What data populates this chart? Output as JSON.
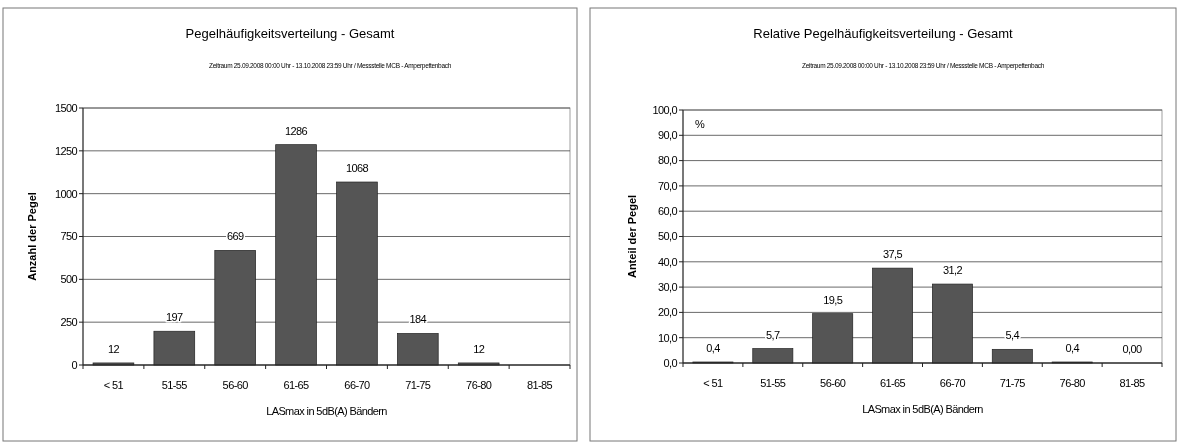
{
  "chart_data": [
    {
      "type": "bar",
      "title": "Pegelhäufigkeitsverteilung - Gesamt",
      "subtitle": "Zeitraum 25.09.2008 00:00 Uhr - 13.10.2008 23:59 Uhr / Messstelle MCB - Amperpettenbach",
      "xlabel": "LASmax in 5dB(A) Bändern",
      "ylabel": "Anzahl der Pegel",
      "categories": [
        "< 51",
        "51-55",
        "56-60",
        "61-65",
        "66-70",
        "71-75",
        "76-80",
        "81-85"
      ],
      "values": [
        12,
        197,
        669,
        1286,
        1068,
        184,
        12,
        0
      ],
      "value_labels": [
        "12",
        "197",
        "669",
        "1286",
        "1068",
        "184",
        "12",
        null
      ],
      "color": "#555555",
      "ylim": [
        0,
        1500
      ],
      "yticks": [
        0,
        250,
        500,
        750,
        1000,
        1250,
        1500
      ],
      "grid": "y"
    },
    {
      "type": "bar",
      "title": "Relative Pegelhäufigkeitsverteilung - Gesamt",
      "subtitle": "Zeitraum 25.09.2008 00:00 Uhr - 13.10.2008 23:59 Uhr / Messstelle MCB - Amperpettenbach",
      "xlabel": "LASmax in 5dB(A) Bändern",
      "ylabel": "Anteil der Pegel",
      "annotations": [
        "%"
      ],
      "categories": [
        "< 51",
        "51-55",
        "56-60",
        "61-65",
        "66-70",
        "71-75",
        "76-80",
        "81-85"
      ],
      "values": [
        0.4,
        5.7,
        19.5,
        37.5,
        31.2,
        5.4,
        0.4,
        0
      ],
      "value_labels": [
        "0,4",
        "5,7",
        "19,5",
        "37,5",
        "31,2",
        "5,4",
        "0,4",
        "0,00"
      ],
      "color": "#555555",
      "ylim": [
        0,
        100
      ],
      "yticks": [
        {
          "value": 0,
          "label": "0,0"
        },
        {
          "value": 10,
          "label": "10,0"
        },
        {
          "value": 20,
          "label": "20,0"
        },
        {
          "value": 30,
          "label": "30,0"
        },
        {
          "value": 40,
          "label": "40,0"
        },
        {
          "value": 50,
          "label": "50,0"
        },
        {
          "value": 60,
          "label": "60,0"
        },
        {
          "value": 70,
          "label": "70,0"
        },
        {
          "value": 80,
          "label": "80,0"
        },
        {
          "value": 90,
          "label": "90,0"
        },
        {
          "value": 100,
          "label": "100,0"
        }
      ],
      "grid": "y"
    }
  ]
}
